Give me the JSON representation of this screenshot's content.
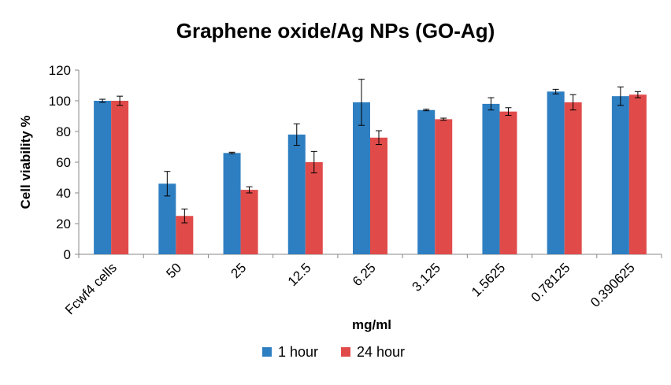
{
  "chart_data": {
    "type": "bar",
    "title": "Graphene oxide/Ag NPs (GO-Ag)",
    "xlabel": "mg/ml",
    "ylabel": "Cell viability %",
    "ylim": [
      0,
      120
    ],
    "yticks": [
      0,
      20,
      40,
      60,
      80,
      100,
      120
    ],
    "grid": false,
    "legend_position": "bottom",
    "categories": [
      "Fcwf4 cells",
      "50",
      "25",
      "12.5",
      "6.25",
      "3.125",
      "1.5625",
      "0.78125",
      "0.390625"
    ],
    "series": [
      {
        "name": "1 hour",
        "color": "#2e7fc2",
        "values": [
          100,
          46,
          66,
          78,
          99,
          94,
          98,
          106,
          103
        ],
        "errors": [
          1,
          8,
          0.5,
          7,
          15,
          0.5,
          4,
          1.5,
          6
        ]
      },
      {
        "name": "24 hour",
        "color": "#e04b4a",
        "values": [
          100,
          25,
          42,
          60,
          76,
          88,
          93,
          99,
          104
        ],
        "errors": [
          3,
          4.5,
          2,
          7,
          4.5,
          0.7,
          2.5,
          5,
          2
        ]
      }
    ]
  }
}
